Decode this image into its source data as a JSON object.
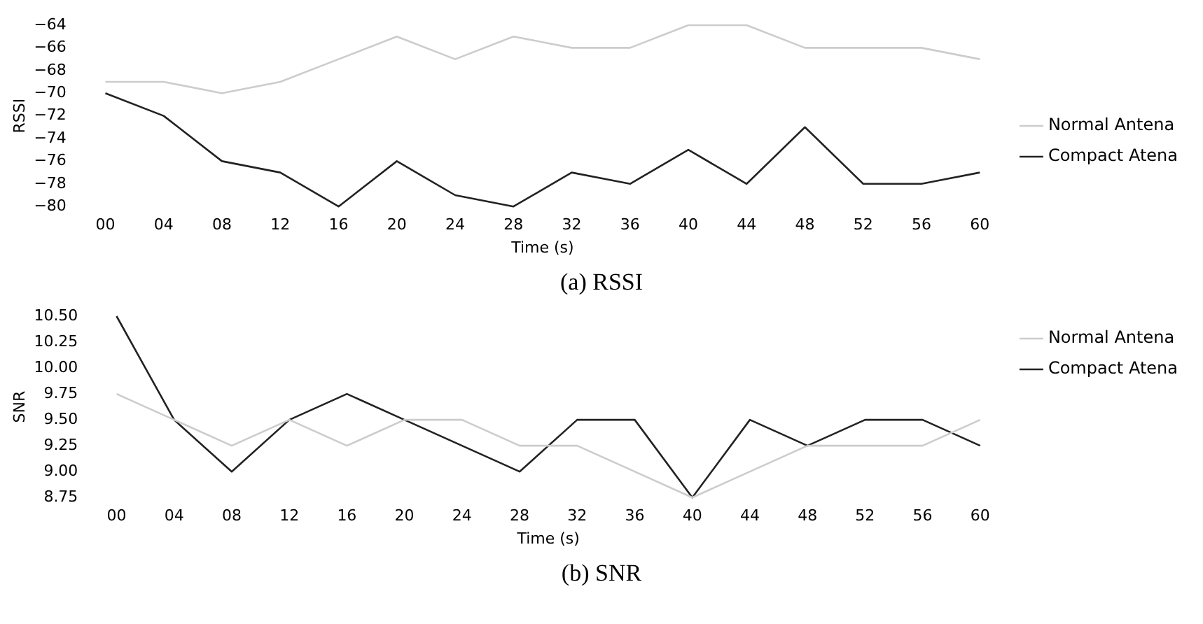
{
  "chart_data": [
    {
      "type": "line",
      "xlabel": "Time (s)",
      "ylabel": "RSSI",
      "categories": [
        "00",
        "04",
        "08",
        "12",
        "16",
        "20",
        "24",
        "28",
        "32",
        "36",
        "40",
        "44",
        "48",
        "52",
        "56",
        "60"
      ],
      "series": [
        {
          "name": "Normal Antena",
          "color": "#cccccc",
          "values": [
            -69,
            -69,
            -70,
            -69,
            -67,
            -65,
            -67,
            -65,
            -66,
            -66,
            -64,
            -64,
            -66,
            -66,
            -66,
            -67
          ]
        },
        {
          "name": "Compact Atena",
          "color": "#222222",
          "values": [
            -70,
            -72,
            -76,
            -77,
            -80,
            -76,
            -79,
            -80,
            -77,
            -78,
            -75,
            -78,
            -73,
            -78,
            -78,
            -77
          ]
        }
      ],
      "ylim": [
        -80,
        -64
      ],
      "yticks": [
        {
          "value": -80,
          "label": "−80"
        },
        {
          "value": -78,
          "label": "−78"
        },
        {
          "value": -76,
          "label": "−76"
        },
        {
          "value": -74,
          "label": "−74"
        },
        {
          "value": -72,
          "label": "−72"
        },
        {
          "value": -70,
          "label": "−70"
        },
        {
          "value": -68,
          "label": "−68"
        },
        {
          "value": -66,
          "label": "−66"
        },
        {
          "value": -64,
          "label": "−64"
        }
      ],
      "grid": false,
      "legend": "right",
      "marker": "none",
      "line_style": "solid",
      "annotations": [
        "(a) RSSI"
      ]
    },
    {
      "type": "line",
      "xlabel": "Time (s)",
      "ylabel": "SNR",
      "categories": [
        "00",
        "04",
        "08",
        "12",
        "16",
        "20",
        "24",
        "28",
        "32",
        "36",
        "40",
        "44",
        "48",
        "52",
        "56",
        "60"
      ],
      "series": [
        {
          "name": "Normal Antena",
          "color": "#cccccc",
          "values": [
            9.75,
            9.5,
            9.25,
            9.5,
            9.25,
            9.5,
            9.5,
            9.25,
            9.25,
            9.0,
            8.75,
            9.0,
            9.25,
            9.25,
            9.25,
            9.5
          ]
        },
        {
          "name": "Compact Atena",
          "color": "#222222",
          "values": [
            10.5,
            9.5,
            9.0,
            9.5,
            9.75,
            9.5,
            9.25,
            9.0,
            9.5,
            9.5,
            8.75,
            9.5,
            9.25,
            9.5,
            9.5,
            9.25
          ]
        }
      ],
      "ylim": [
        8.75,
        10.5
      ],
      "yticks": [
        {
          "value": 8.75,
          "label": "8.75"
        },
        {
          "value": 9.0,
          "label": "9.00"
        },
        {
          "value": 9.25,
          "label": "9.25"
        },
        {
          "value": 9.5,
          "label": "9.50"
        },
        {
          "value": 9.75,
          "label": "9.75"
        },
        {
          "value": 10.0,
          "label": "10.00"
        },
        {
          "value": 10.25,
          "label": "10.25"
        },
        {
          "value": 10.5,
          "label": "10.50"
        }
      ],
      "grid": false,
      "legend": "top right",
      "marker": "none",
      "line_style": "solid",
      "annotations": [
        "(b) SNR"
      ]
    }
  ]
}
